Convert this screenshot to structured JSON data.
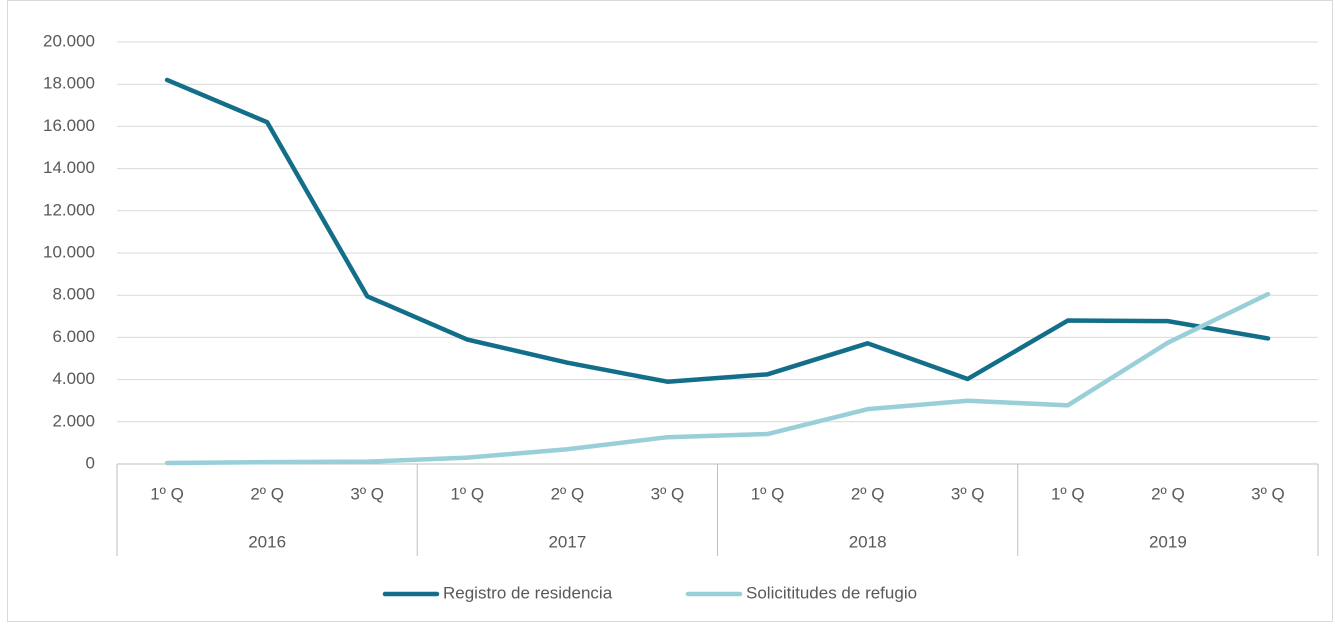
{
  "chart_data": {
    "type": "line",
    "categories": [
      "1º Q",
      "2º Q",
      "3º Q",
      "1º Q",
      "2º Q",
      "3º Q",
      "1º Q",
      "2º Q",
      "3º Q",
      "1º Q",
      "2º Q",
      "3º Q"
    ],
    "category_groups": [
      "2016",
      "2017",
      "2018",
      "2019"
    ],
    "series": [
      {
        "name": "Registro de residencia",
        "color": "#136f89",
        "values": [
          18200,
          16200,
          7950,
          5900,
          4800,
          3900,
          4250,
          5720,
          4030,
          6800,
          6770,
          5950
        ]
      },
      {
        "name": "Solicititudes de refugio",
        "color": "#98cfd8",
        "values": [
          50,
          90,
          110,
          300,
          700,
          1270,
          1420,
          2600,
          3000,
          2780,
          5750,
          8050
        ]
      }
    ],
    "ylim": [
      0,
      20000
    ],
    "yticks": [
      0,
      {
        "value": 2000,
        "label": "2.000"
      },
      {
        "value": 4000,
        "label": "4.000"
      },
      {
        "value": 6000,
        "label": "6.000"
      },
      {
        "value": 8000,
        "label": "8.000"
      },
      {
        "value": 10000,
        "label": "10.000"
      },
      {
        "value": 12000,
        "label": "12.000"
      },
      {
        "value": 14000,
        "label": "14.000"
      },
      {
        "value": 16000,
        "label": "16.000"
      },
      {
        "value": 18000,
        "label": "18.000"
      },
      {
        "value": 20000,
        "label": "20.000"
      }
    ],
    "grid": true,
    "legend": "bottom"
  }
}
